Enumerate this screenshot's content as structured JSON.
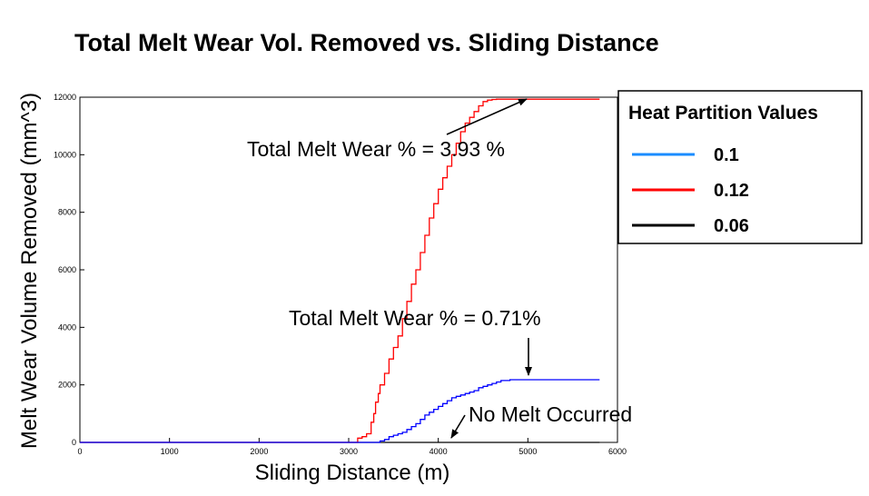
{
  "chart_data": {
    "type": "line",
    "title": "Total Melt Wear Vol. Removed vs. Sliding Distance",
    "xlabel": "Sliding Distance (m)",
    "ylabel": "Melt Wear Volume Removed (mm^3)",
    "xlim": [
      0,
      6000
    ],
    "ylim": [
      0,
      12000
    ],
    "x_ticks": [
      0,
      1000,
      2000,
      3000,
      4000,
      5000,
      6000
    ],
    "y_ticks": [
      0,
      2000,
      4000,
      6000,
      8000,
      10000,
      12000
    ],
    "x_tick_labels": [
      "0",
      "1000",
      "2000",
      "3000",
      "4000",
      "5000",
      "6000"
    ],
    "y_tick_labels": [
      "0",
      "2000",
      "4000",
      "6000",
      "8000",
      "10000",
      "12000"
    ],
    "grid": false,
    "legend": {
      "title": "Heat Partition Values",
      "placement": "right"
    },
    "series": [
      {
        "name": "0.1",
        "color": "#0000ff",
        "legend_color": "#1a8cff",
        "x": [
          0,
          3300,
          3350,
          3400,
          3450,
          3500,
          3550,
          3600,
          3650,
          3700,
          3750,
          3800,
          3850,
          3900,
          3950,
          4000,
          4050,
          4100,
          4150,
          4200,
          4250,
          4300,
          4350,
          4400,
          4450,
          4500,
          4550,
          4600,
          4650,
          4700,
          4800,
          5000,
          5200,
          5400,
          5600,
          5800
        ],
        "y": [
          0,
          0,
          50,
          100,
          200,
          250,
          300,
          350,
          450,
          550,
          650,
          800,
          950,
          1050,
          1150,
          1250,
          1350,
          1450,
          1550,
          1600,
          1650,
          1700,
          1750,
          1800,
          1900,
          1950,
          2000,
          2050,
          2100,
          2150,
          2180,
          2180,
          2180,
          2180,
          2180,
          2180
        ]
      },
      {
        "name": "0.12",
        "color": "#ff0000",
        "legend_color": "#ff0000",
        "x": [
          0,
          3000,
          3050,
          3100,
          3150,
          3200,
          3250,
          3280,
          3300,
          3330,
          3350,
          3400,
          3450,
          3500,
          3550,
          3600,
          3650,
          3700,
          3750,
          3800,
          3850,
          3900,
          3950,
          4000,
          4050,
          4100,
          4150,
          4200,
          4250,
          4300,
          4350,
          4400,
          4450,
          4500,
          4550,
          4600,
          4650,
          4700,
          4750,
          4800,
          5000,
          5200,
          5400,
          5600,
          5800
        ],
        "y": [
          0,
          0,
          0,
          150,
          200,
          300,
          700,
          1000,
          1400,
          1700,
          2000,
          2400,
          2900,
          3300,
          3700,
          4300,
          4900,
          5500,
          6000,
          6600,
          7200,
          7800,
          8300,
          8800,
          9200,
          9600,
          10000,
          10400,
          10800,
          11100,
          11300,
          11500,
          11700,
          11850,
          11900,
          11920,
          11930,
          11930,
          11930,
          11930,
          11930,
          11930,
          11930,
          11930,
          11930
        ]
      },
      {
        "name": "0.06",
        "color": "#000000",
        "legend_color": "#000000",
        "x": [
          0,
          5800
        ],
        "y": [
          0,
          0
        ]
      }
    ],
    "annotations": [
      {
        "text": "Total Melt Wear % = 3.93 %",
        "target_x": 5000,
        "target_y": 11930
      },
      {
        "text": "Total Melt Wear % = 0.71%",
        "target_x": 5050,
        "target_y": 2280
      },
      {
        "text": "No Melt Occurred",
        "target_x": 4150,
        "target_y": 300
      }
    ]
  }
}
